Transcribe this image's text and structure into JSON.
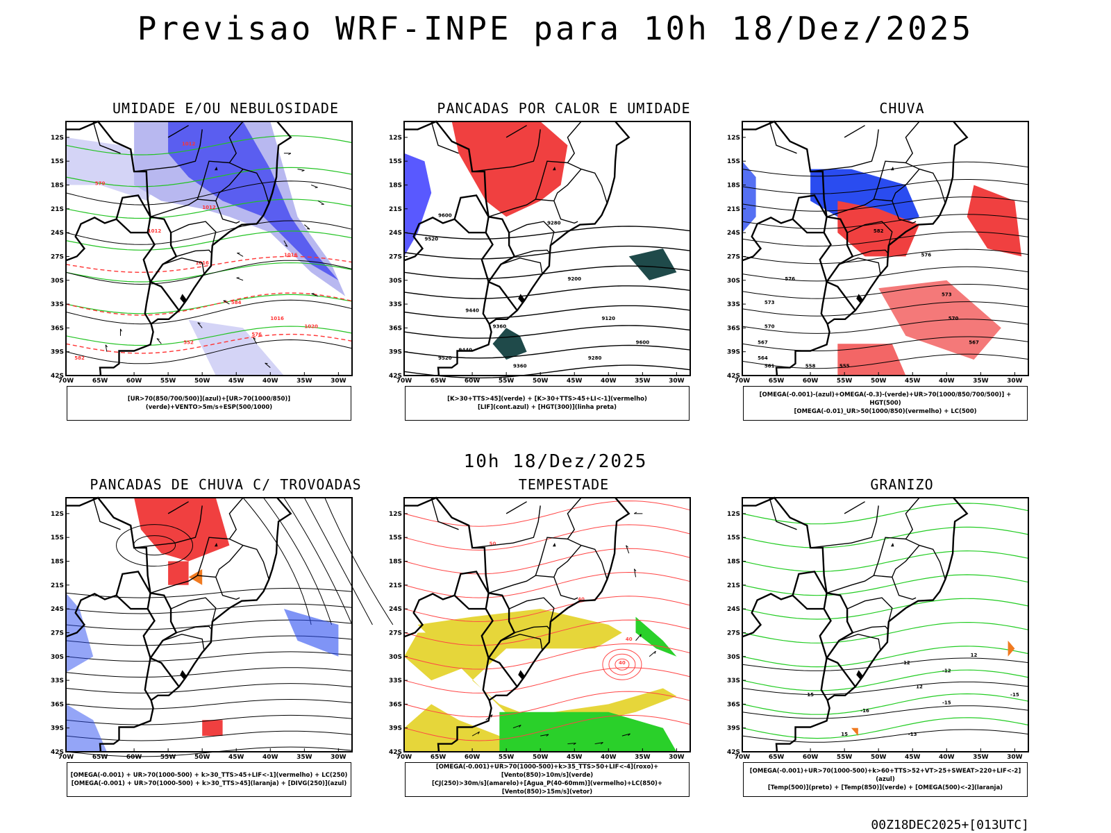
{
  "page": {
    "main_title": "Previsao WRF-INPE  para 10h 18/Dez/2025",
    "mid_title": "10h 18/Dez/2025",
    "footer_stamp": "00Z18DEC2025+[013UTC]"
  },
  "axes": {
    "lat_ticks": [
      "12S",
      "15S",
      "18S",
      "21S",
      "24S",
      "27S",
      "30S",
      "33S",
      "36S",
      "39S",
      "42S"
    ],
    "lon_ticks": [
      "70W",
      "65W",
      "60W",
      "55W",
      "50W",
      "45W",
      "40W",
      "35W",
      "30W"
    ]
  },
  "panels": [
    {
      "id": "umidade",
      "title": "UMIDADE E/OU NEBULOSIDADE",
      "legend": [
        "[UR>70(850/700/500)](azul)+[UR>70(1000/850)](verde)+VENTO>5m/s+ESP(500/1000)"
      ],
      "contour_labels": [
        "1012",
        "1012",
        "1012",
        "1016",
        "1016",
        "1016",
        "1020",
        "584",
        "576",
        "570",
        "552",
        "582"
      ],
      "colors": {
        "fill": "#5a5ef0",
        "fill_light": "#b8b8f0",
        "line": "#22c322",
        "dash": "#ff3333"
      }
    },
    {
      "id": "pancadas-calor",
      "title": "PANCADAS POR CALOR E UMIDADE",
      "legend": [
        "[K>30+TTS>45](verde) + [K>30+TTS>45+LI<-1](vermelho)",
        "[LIF](cont.azul) + [HGT(300)](linha preta)"
      ],
      "contour_labels": [
        "9600",
        "9520",
        "9440",
        "9360",
        "9280",
        "9200",
        "9120",
        "9600",
        "9520",
        "9440",
        "9360",
        "9280"
      ],
      "colors": {
        "fill": "#f04040",
        "fill_dark": "#1f4a4a",
        "line": "#000000",
        "blue": "#3030ff"
      }
    },
    {
      "id": "chuva",
      "title": "CHUVA",
      "legend": [
        "[OMEGA(-0.001)-(azul)+OMEGA(-0.3)-(verde)+UR>70(1000/850/700/500)] + HGT(500)",
        "[OMEGA(-0.01)_UR>50(1000/850)(vermelho) + LC(500)"
      ],
      "contour_labels": [
        "582",
        "576",
        "573",
        "570",
        "567",
        "564",
        "561",
        "558",
        "555",
        "576",
        "573",
        "570",
        "567"
      ],
      "colors": {
        "fill": "#f04040",
        "fill_blue": "#2a4cf0",
        "green": "#22c322"
      }
    },
    {
      "id": "trovoadas",
      "title": "PANCADAS DE CHUVA C/ TROVOADAS",
      "legend": [
        "[OMEGA(-0.001) + UR>70(1000-500) + k>30_TTS>45+LIF<-1](vermelho) + LC(250)",
        "[OMEGA(-0.001) + UR>70(1000-500) + k>30_TTS>45](laranja) + [DIVG(250)](azul)"
      ],
      "contour_labels": [],
      "colors": {
        "fill": "#f04040",
        "orange": "#f07a20",
        "blue": "#2a4cf0"
      }
    },
    {
      "id": "tempestade",
      "title": "TEMPESTADE",
      "legend": [
        "[OMEGA(-0.001)+UR>70(1000-500)+k>35_TTS>50+LIF<-4](roxo)+[Vento(850)>10m/s](verde)",
        "[CJ(250)>30m/s](amarelo)+[Agua_P(40-60mm)](vermelho)+LC(850)+[Vento(850)>15m/s](vetor)"
      ],
      "contour_labels": [
        "40",
        "40",
        "40",
        "50"
      ],
      "colors": {
        "yellow": "#e6d63a",
        "red": "#ff4444",
        "green": "#2ad02a"
      }
    },
    {
      "id": "granizo",
      "title": "GRANIZO",
      "legend": [
        "[OMEGA(-0.001)+UR>70(1000-500)+k>60+TTS>52+VT>25+SWEAT>220+LIF<-2](azul)",
        "[Temp(500)](preto) + [Temp(850)](verde) + [OMEGA(500)<-2](laranja)"
      ],
      "contour_labels": [
        "-12",
        "-12",
        "-15",
        "-15",
        "-16",
        "-13",
        "12",
        "12",
        "15",
        "15"
      ],
      "colors": {
        "green": "#22cc22",
        "orange": "#f07a20"
      }
    }
  ]
}
